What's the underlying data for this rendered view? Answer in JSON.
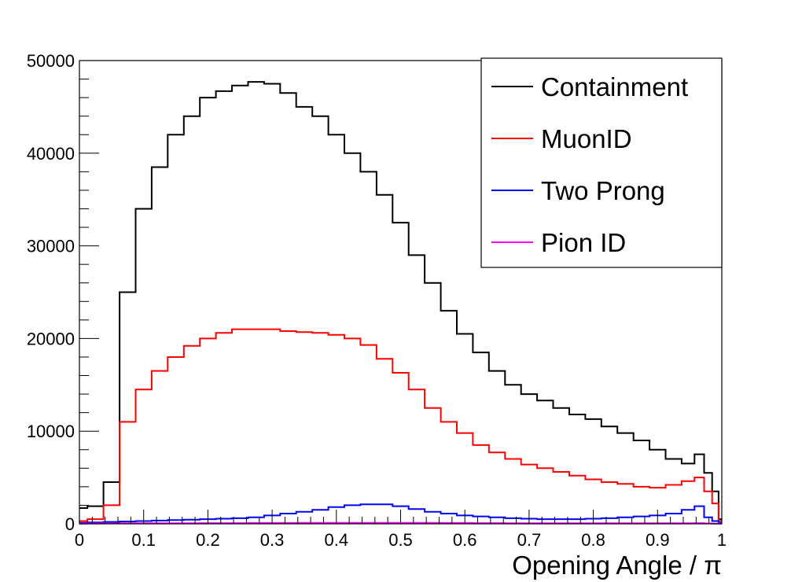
{
  "chart_data": {
    "type": "line",
    "title": "",
    "xlabel": "Opening Angle / π",
    "ylabel": "",
    "xlim": [
      0,
      1
    ],
    "ylim": [
      0,
      50000
    ],
    "x_ticks": [
      "0",
      "0.1",
      "0.2",
      "0.3",
      "0.4",
      "0.5",
      "0.6",
      "0.7",
      "0.8",
      "0.9",
      "1"
    ],
    "y_ticks": [
      "0",
      "10000",
      "20000",
      "30000",
      "40000",
      "50000"
    ],
    "legend_position": "top-right",
    "grid": false,
    "x": [
      0,
      0.025,
      0.05,
      0.075,
      0.1,
      0.125,
      0.15,
      0.175,
      0.2,
      0.225,
      0.25,
      0.275,
      0.3,
      0.325,
      0.35,
      0.375,
      0.4,
      0.425,
      0.45,
      0.475,
      0.5,
      0.525,
      0.55,
      0.575,
      0.6,
      0.625,
      0.65,
      0.675,
      0.7,
      0.725,
      0.75,
      0.775,
      0.8,
      0.825,
      0.85,
      0.875,
      0.9,
      0.925,
      0.95,
      0.965,
      0.98,
      0.99,
      1.0
    ],
    "series": [
      {
        "name": "Containment",
        "color": "#000000",
        "values": [
          1700,
          1900,
          4500,
          25000,
          34000,
          38500,
          42000,
          44000,
          46000,
          46700,
          47300,
          47700,
          47500,
          46500,
          45000,
          44000,
          42000,
          40000,
          38000,
          35500,
          32500,
          29000,
          26000,
          23000,
          20500,
          18500,
          16500,
          15000,
          14000,
          13300,
          12500,
          11800,
          11300,
          10500,
          9800,
          9000,
          8000,
          7000,
          6500,
          7500,
          5500,
          3500,
          500
        ]
      },
      {
        "name": "MuonID",
        "color": "#ff0000",
        "values": [
          300,
          500,
          2000,
          11000,
          14500,
          16500,
          18000,
          19200,
          20000,
          20600,
          21000,
          21000,
          21000,
          20800,
          20700,
          20600,
          20400,
          20000,
          19300,
          17800,
          16300,
          14500,
          12500,
          11000,
          9800,
          8500,
          7700,
          7000,
          6400,
          6000,
          5600,
          5200,
          4800,
          4500,
          4300,
          4000,
          3900,
          4200,
          4600,
          5000,
          3500,
          2200,
          300
        ]
      },
      {
        "name": "Two Prong",
        "color": "#0000ff",
        "values": [
          100,
          150,
          200,
          250,
          300,
          350,
          400,
          450,
          500,
          550,
          600,
          700,
          900,
          1100,
          1300,
          1500,
          1800,
          2000,
          2100,
          2100,
          1900,
          1600,
          1300,
          1100,
          900,
          800,
          700,
          600,
          550,
          500,
          500,
          500,
          550,
          600,
          700,
          800,
          900,
          1100,
          1500,
          1900,
          700,
          300,
          100
        ]
      },
      {
        "name": "Pion ID",
        "color": "#ff00ff",
        "values": [
          20,
          30,
          40,
          50,
          60,
          60,
          70,
          70,
          80,
          80,
          80,
          90,
          90,
          90,
          100,
          100,
          100,
          100,
          100,
          100,
          100,
          100,
          100,
          90,
          90,
          80,
          80,
          70,
          70,
          70,
          60,
          60,
          60,
          60,
          60,
          60,
          60,
          70,
          70,
          80,
          40,
          20,
          10
        ]
      }
    ]
  }
}
